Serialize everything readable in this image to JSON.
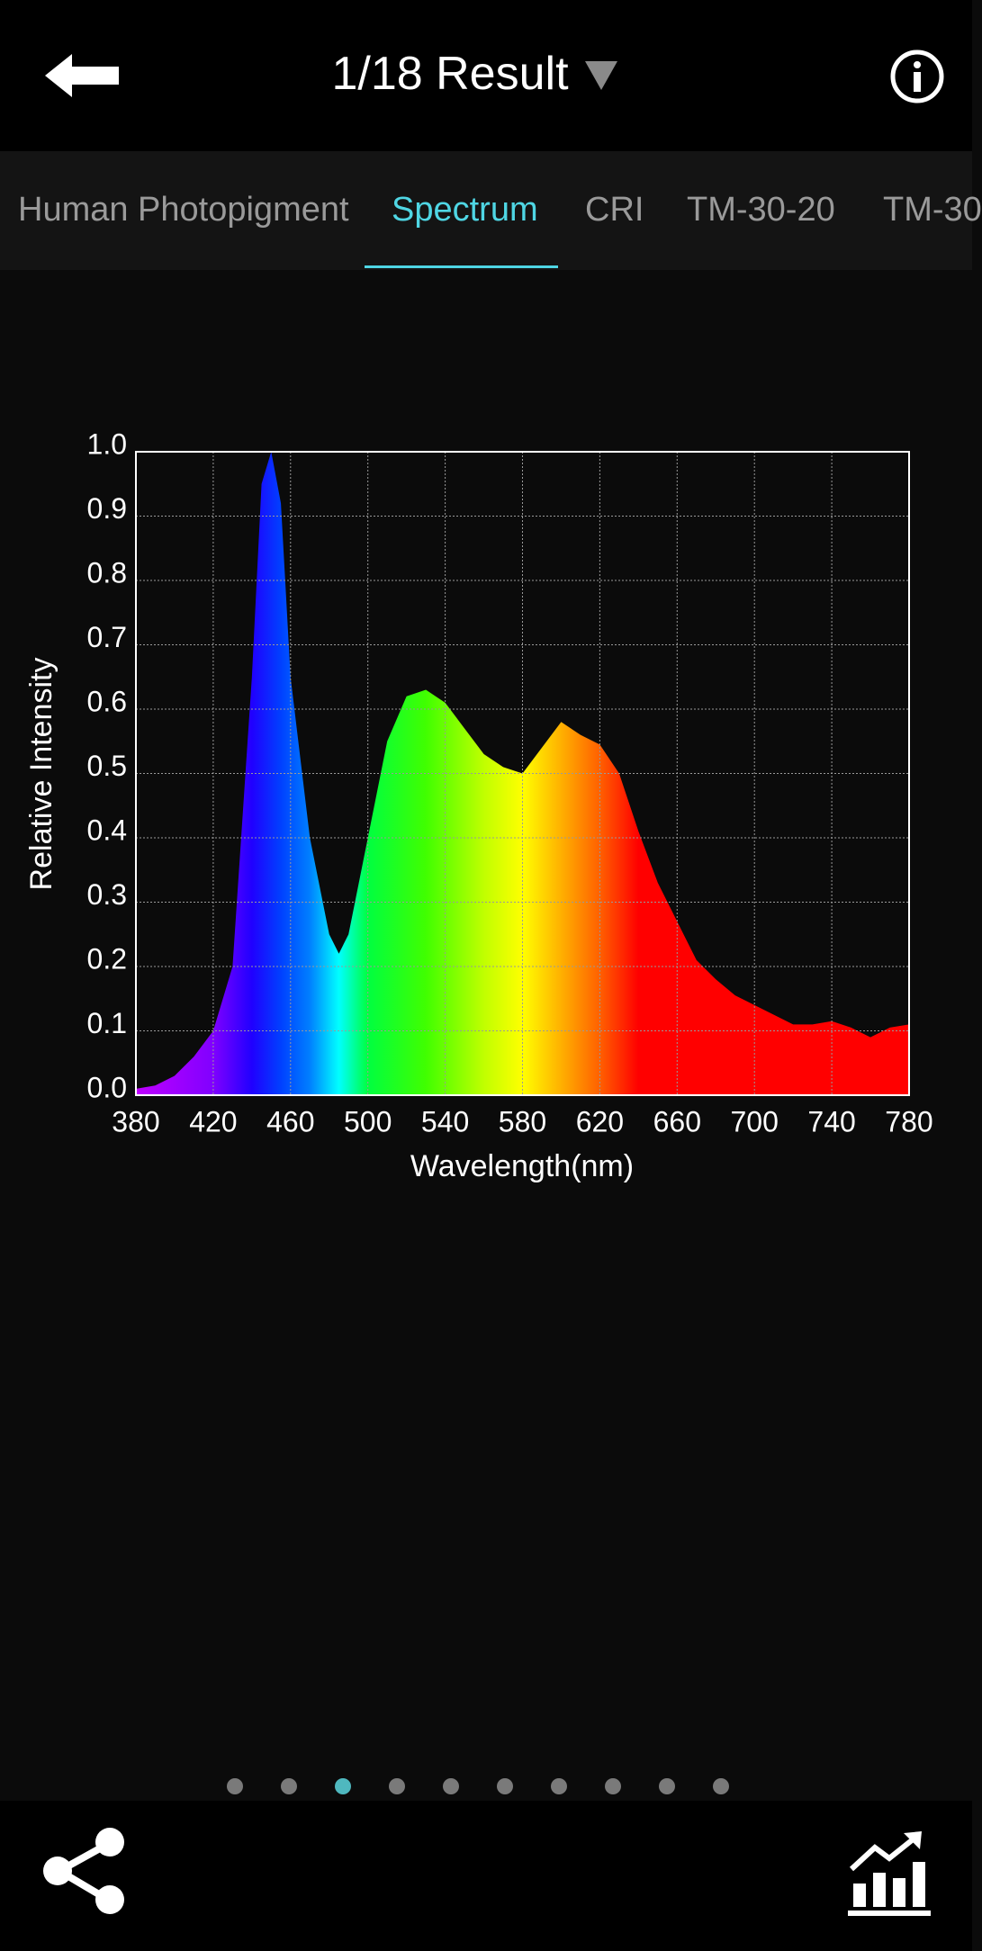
{
  "header": {
    "title": "1/18 Result"
  },
  "tabs": [
    "Human Photopigment",
    "Spectrum",
    "CRI",
    "TM-30-20",
    "TM-30"
  ],
  "chart_data": {
    "type": "area",
    "xlabel": "Wavelength(nm)",
    "ylabel": "Relative Intensity",
    "x": [
      380,
      390,
      400,
      410,
      420,
      430,
      440,
      445,
      450,
      455,
      460,
      470,
      480,
      485,
      490,
      500,
      510,
      520,
      530,
      540,
      550,
      560,
      570,
      580,
      590,
      600,
      610,
      620,
      630,
      640,
      650,
      660,
      670,
      680,
      690,
      700,
      710,
      720,
      730,
      740,
      750,
      760,
      770,
      780
    ],
    "values": [
      0.01,
      0.015,
      0.03,
      0.06,
      0.1,
      0.2,
      0.65,
      0.95,
      1.0,
      0.92,
      0.65,
      0.4,
      0.25,
      0.22,
      0.25,
      0.4,
      0.55,
      0.62,
      0.63,
      0.61,
      0.57,
      0.53,
      0.51,
      0.5,
      0.54,
      0.58,
      0.56,
      0.545,
      0.5,
      0.41,
      0.33,
      0.27,
      0.21,
      0.18,
      0.155,
      0.14,
      0.125,
      0.11,
      0.11,
      0.115,
      0.105,
      0.09,
      0.105,
      0.11
    ],
    "xlim": [
      380,
      780
    ],
    "xticks": [
      380,
      420,
      460,
      500,
      540,
      580,
      620,
      660,
      700,
      740,
      780
    ],
    "ylim": [
      0,
      1
    ],
    "yticks": [
      {
        "value": 0,
        "label": "0.0"
      },
      0.1,
      0.2,
      0.3,
      0.4,
      0.5,
      0.6,
      0.7,
      0.8,
      0.9,
      {
        "value": 1,
        "label": "1.0"
      }
    ],
    "grid": true
  }
}
